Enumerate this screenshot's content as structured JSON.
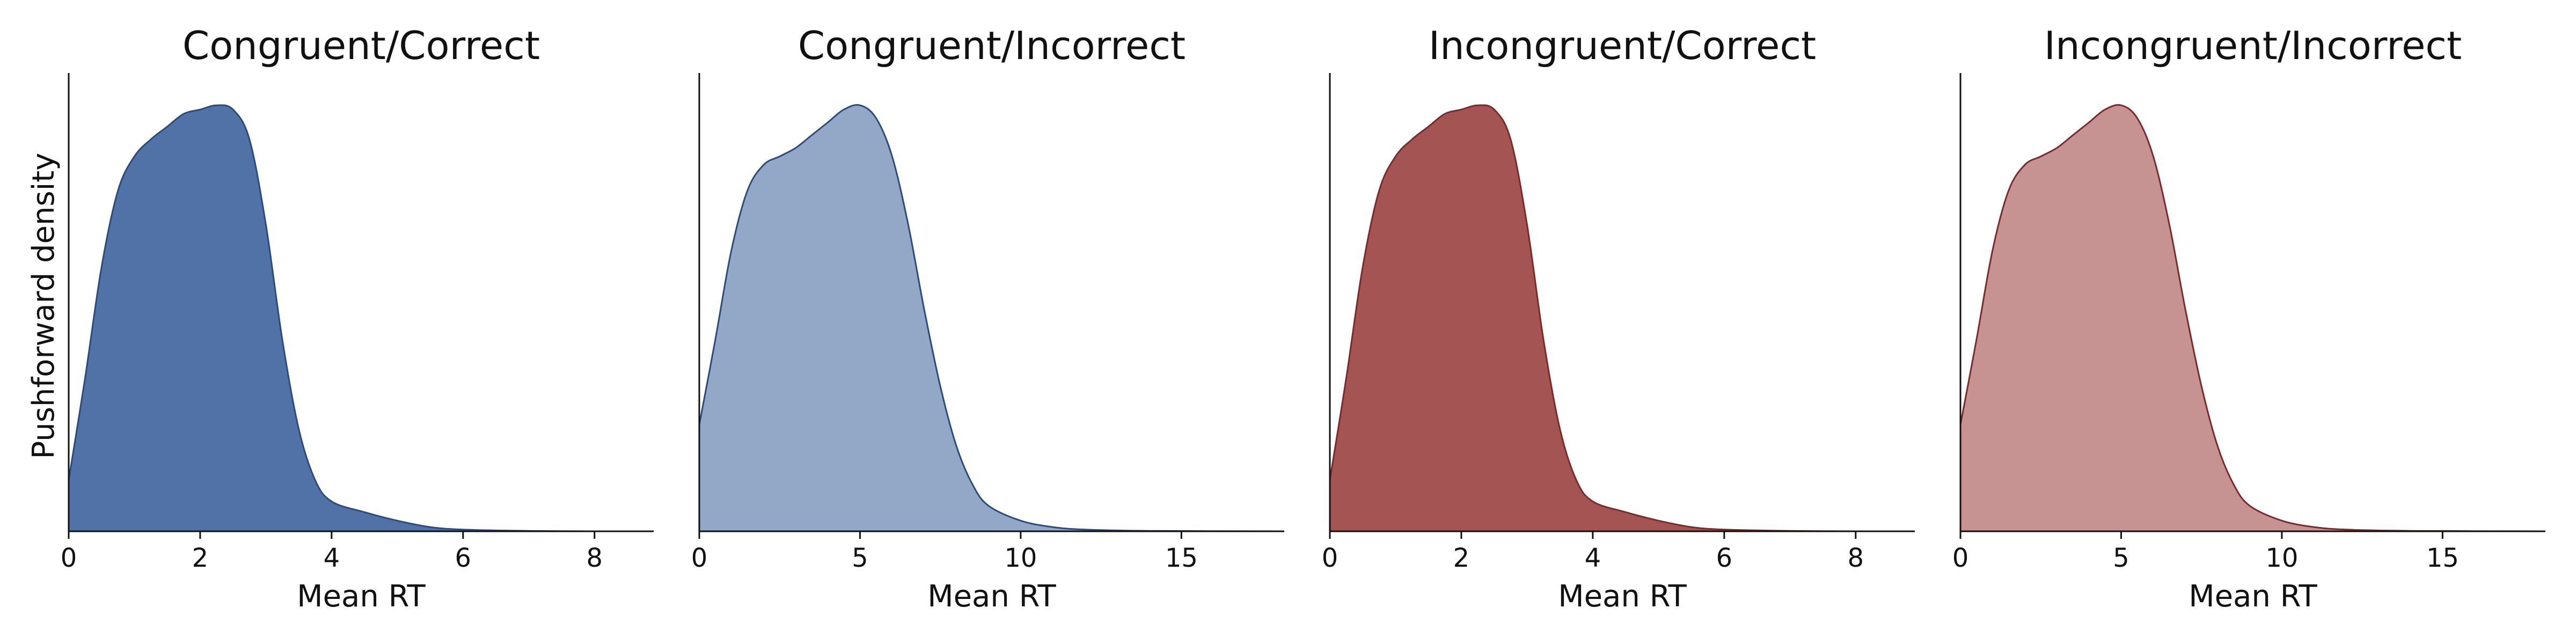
{
  "figure": {
    "ylabel": "Pushforward density"
  },
  "chart_data": [
    {
      "type": "area",
      "title": "Congruent/Correct",
      "xlabel": "Mean RT",
      "ylabel": "Pushforward density",
      "xlim": [
        0,
        8.9
      ],
      "ylim": [
        0,
        1.0
      ],
      "xticks": [
        0,
        2,
        4,
        6,
        8
      ],
      "grid": false,
      "fill_color": "#5072a7",
      "line_color": "#2b4a80",
      "x": [
        0,
        0.25,
        0.5,
        0.75,
        1.0,
        1.25,
        1.5,
        1.75,
        2.0,
        2.25,
        2.5,
        2.75,
        3.0,
        3.25,
        3.5,
        3.75,
        4.0,
        4.5,
        5.0,
        5.5,
        6.0,
        7.0,
        8.0,
        8.9
      ],
      "values": [
        0.12,
        0.36,
        0.62,
        0.8,
        0.88,
        0.92,
        0.95,
        0.98,
        0.99,
        1.0,
        0.99,
        0.92,
        0.72,
        0.45,
        0.24,
        0.12,
        0.07,
        0.045,
        0.025,
        0.01,
        0.004,
        0.001,
        0,
        0
      ]
    },
    {
      "type": "area",
      "title": "Congruent/Incorrect",
      "xlabel": "Mean RT",
      "ylim": [
        0,
        1.0
      ],
      "xlim": [
        0,
        18.2
      ],
      "xticks": [
        0,
        5,
        10,
        15
      ],
      "grid": false,
      "fill_color": "#92a8c6",
      "line_color": "#2b4a80",
      "x": [
        0,
        0.5,
        1.0,
        1.5,
        2.0,
        2.5,
        3.0,
        3.5,
        4.0,
        4.5,
        5.0,
        5.5,
        6.0,
        6.5,
        7.0,
        7.5,
        8.0,
        8.5,
        9.0,
        10.0,
        11.0,
        12.0,
        14.0,
        18.2
      ],
      "values": [
        0.25,
        0.45,
        0.66,
        0.8,
        0.86,
        0.88,
        0.9,
        0.93,
        0.96,
        0.99,
        1.0,
        0.97,
        0.88,
        0.72,
        0.52,
        0.34,
        0.2,
        0.11,
        0.06,
        0.025,
        0.01,
        0.004,
        0.001,
        0
      ]
    },
    {
      "type": "area",
      "title": "Incongruent/Correct",
      "xlabel": "Mean RT",
      "ylim": [
        0,
        1.0
      ],
      "xlim": [
        0,
        8.9
      ],
      "xticks": [
        0,
        2,
        4,
        6,
        8
      ],
      "grid": false,
      "fill_color": "#a45453",
      "line_color": "#7a2a29",
      "x": [
        0,
        0.25,
        0.5,
        0.75,
        1.0,
        1.25,
        1.5,
        1.75,
        2.0,
        2.25,
        2.5,
        2.75,
        3.0,
        3.25,
        3.5,
        3.75,
        4.0,
        4.5,
        5.0,
        5.5,
        6.0,
        7.0,
        8.0,
        8.9
      ],
      "values": [
        0.12,
        0.36,
        0.62,
        0.8,
        0.88,
        0.92,
        0.95,
        0.98,
        0.99,
        1.0,
        0.99,
        0.92,
        0.72,
        0.45,
        0.24,
        0.12,
        0.07,
        0.045,
        0.025,
        0.01,
        0.004,
        0.001,
        0,
        0
      ]
    },
    {
      "type": "area",
      "title": "Incongruent/Incorrect",
      "xlabel": "Mean RT",
      "ylim": [
        0,
        1.0
      ],
      "xlim": [
        0,
        18.2
      ],
      "xticks": [
        0,
        5,
        10,
        15
      ],
      "grid": false,
      "fill_color": "#c79392",
      "line_color": "#7a2a29",
      "x": [
        0,
        0.5,
        1.0,
        1.5,
        2.0,
        2.5,
        3.0,
        3.5,
        4.0,
        4.5,
        5.0,
        5.5,
        6.0,
        6.5,
        7.0,
        7.5,
        8.0,
        8.5,
        9.0,
        10.0,
        11.0,
        12.0,
        14.0,
        18.2
      ],
      "values": [
        0.25,
        0.45,
        0.66,
        0.8,
        0.86,
        0.88,
        0.9,
        0.93,
        0.96,
        0.99,
        1.0,
        0.97,
        0.88,
        0.72,
        0.52,
        0.34,
        0.2,
        0.11,
        0.06,
        0.025,
        0.01,
        0.004,
        0.001,
        0
      ]
    }
  ]
}
